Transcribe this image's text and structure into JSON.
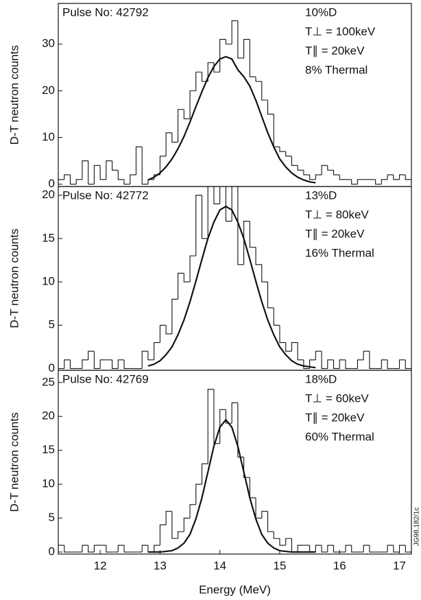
{
  "chart_data": [
    {
      "type": "histogram",
      "title": "Pulse No: 42792",
      "annotations": [
        "10%D",
        "T⊥ = 100keV",
        "T∥ = 20keV",
        "8% Thermal"
      ],
      "ylabel": "D-T neutron counts",
      "bins": [
        11.3,
        11.4,
        11.5,
        11.6,
        11.7,
        11.8,
        11.9,
        12.0,
        12.1,
        12.2,
        12.3,
        12.4,
        12.5,
        12.6,
        12.7,
        12.8,
        12.9,
        13.0,
        13.1,
        13.2,
        13.3,
        13.4,
        13.5,
        13.6,
        13.7,
        13.8,
        13.9,
        14.0,
        14.1,
        14.2,
        14.3,
        14.4,
        14.5,
        14.6,
        14.7,
        14.8,
        14.9,
        15.0,
        15.1,
        15.2,
        15.3,
        15.4,
        15.5,
        15.6,
        15.7,
        15.8,
        15.9,
        16.0,
        16.1,
        16.2,
        16.3,
        16.4,
        16.5,
        16.6,
        16.7,
        16.8,
        16.9,
        17.0,
        17.1,
        17.2
      ],
      "counts": [
        1,
        2,
        0,
        1,
        5,
        0,
        4,
        1,
        5,
        3,
        1,
        0,
        2,
        8,
        0,
        1,
        2,
        6,
        11,
        9,
        16,
        14,
        20,
        24,
        22,
        26,
        24,
        31,
        30,
        35,
        27,
        31,
        23,
        22,
        18,
        15,
        8,
        7,
        6,
        4,
        3,
        2,
        1,
        2,
        4,
        3,
        2,
        1,
        1,
        0,
        1,
        1,
        1,
        0,
        1,
        2,
        1,
        2,
        1
      ],
      "fit": {
        "x": [
          12.8,
          12.9,
          13.0,
          13.1,
          13.2,
          13.3,
          13.4,
          13.5,
          13.6,
          13.7,
          13.8,
          13.9,
          14.0,
          14.1,
          14.2,
          14.3,
          14.4,
          14.5,
          14.6,
          14.7,
          14.8,
          14.9,
          15.0,
          15.1,
          15.2,
          15.3,
          15.4,
          15.5,
          15.6
        ],
        "values": [
          0.9,
          1.5,
          2.4,
          3.7,
          5.4,
          7.6,
          10.2,
          13.3,
          16.6,
          19.8,
          22.8,
          25.2,
          26.8,
          27.3,
          26.8,
          24.5,
          23,
          21,
          18,
          14.5,
          11,
          8,
          5.4,
          3.7,
          2.4,
          1.5,
          0.9,
          0.5,
          0.3
        ]
      },
      "xlim": [
        11.3,
        17.2
      ],
      "ylim": [
        -0.5,
        38.7
      ],
      "yticks": [
        0,
        10,
        20,
        30
      ]
    },
    {
      "type": "histogram",
      "title": "Pulse No: 42772",
      "annotations": [
        "13%D",
        "T⊥ = 80keV",
        "T∥ = 20keV",
        "16% Thermal"
      ],
      "ylabel": "D-T neutron counts",
      "bins": [
        11.3,
        11.4,
        11.5,
        11.6,
        11.7,
        11.8,
        11.9,
        12.0,
        12.1,
        12.2,
        12.3,
        12.4,
        12.5,
        12.6,
        12.7,
        12.8,
        12.9,
        13.0,
        13.1,
        13.2,
        13.3,
        13.4,
        13.5,
        13.6,
        13.7,
        13.8,
        13.9,
        14.0,
        14.1,
        14.2,
        14.3,
        14.4,
        14.5,
        14.6,
        14.7,
        14.8,
        14.9,
        15.0,
        15.1,
        15.2,
        15.3,
        15.4,
        15.5,
        15.6,
        15.7,
        15.8,
        15.9,
        16.0,
        16.1,
        16.2,
        16.3,
        16.4,
        16.5,
        16.6,
        16.7,
        16.8,
        16.9,
        17.0,
        17.1,
        17.2
      ],
      "counts": [
        0,
        1,
        0,
        0,
        1,
        2,
        0,
        1,
        1,
        0,
        1,
        0,
        0,
        0,
        2,
        1,
        3,
        5,
        4,
        8,
        11,
        10,
        13,
        20,
        15,
        21,
        19,
        22,
        17,
        22,
        12,
        17,
        14,
        12,
        10,
        7,
        5,
        3,
        2,
        3,
        1,
        0,
        1,
        2,
        0,
        1,
        0,
        1,
        0,
        0,
        1,
        2,
        0,
        0,
        1,
        0,
        0,
        1,
        0
      ],
      "fit": {
        "x": [
          12.8,
          12.9,
          13.0,
          13.1,
          13.2,
          13.3,
          13.4,
          13.5,
          13.6,
          13.7,
          13.8,
          13.9,
          14.0,
          14.1,
          14.2,
          14.3,
          14.4,
          14.5,
          14.6,
          14.7,
          14.8,
          14.9,
          15.0,
          15.1,
          15.2,
          15.3,
          15.4,
          15.5,
          15.6
        ],
        "values": [
          0.3,
          0.5,
          0.9,
          1.6,
          2.5,
          3.9,
          5.6,
          7.7,
          10.1,
          12.6,
          15.0,
          16.9,
          18.3,
          18.7,
          18.3,
          16.9,
          15.0,
          12.6,
          10.1,
          7.7,
          5.6,
          3.9,
          2.5,
          1.6,
          0.9,
          0.5,
          0.3,
          0.2,
          0.1
        ]
      },
      "xlim": [
        11.3,
        17.2
      ],
      "ylim": [
        -0.2,
        21
      ],
      "yticks": [
        0,
        5,
        10,
        15,
        20
      ]
    },
    {
      "type": "histogram",
      "title": "Pulse No: 42769",
      "annotations": [
        "18%D",
        "T⊥ = 60keV",
        "T∥ = 20keV",
        "60% Thermal"
      ],
      "ylabel": "D-T neutron counts",
      "xlabel": "Energy (MeV)",
      "credit": "JG98.182/1c",
      "bins": [
        11.3,
        11.4,
        11.5,
        11.6,
        11.7,
        11.8,
        11.9,
        12.0,
        12.1,
        12.2,
        12.3,
        12.4,
        12.5,
        12.6,
        12.7,
        12.8,
        12.9,
        13.0,
        13.1,
        13.2,
        13.3,
        13.4,
        13.5,
        13.6,
        13.7,
        13.8,
        13.9,
        14.0,
        14.1,
        14.2,
        14.3,
        14.4,
        14.5,
        14.6,
        14.7,
        14.8,
        14.9,
        15.0,
        15.1,
        15.2,
        15.3,
        15.4,
        15.5,
        15.6,
        15.7,
        15.8,
        15.9,
        16.0,
        16.1,
        16.2,
        16.3,
        16.4,
        16.5,
        16.6,
        16.7,
        16.8,
        16.9,
        17.0,
        17.1,
        17.2
      ],
      "counts": [
        1,
        0,
        0,
        0,
        1,
        0,
        1,
        1,
        0,
        0,
        1,
        0,
        0,
        0,
        1,
        0,
        1,
        4,
        6,
        2,
        3,
        5,
        7,
        10,
        13,
        24,
        16,
        21,
        19,
        22,
        14,
        11,
        8,
        5,
        6,
        3,
        2,
        1,
        2,
        0,
        1,
        1,
        0,
        1,
        0,
        1,
        0,
        0,
        1,
        0,
        0,
        1,
        0,
        0,
        0,
        1,
        0,
        1,
        0
      ],
      "fit": {
        "x": [
          12.8,
          12.9,
          13.0,
          13.1,
          13.2,
          13.3,
          13.4,
          13.5,
          13.6,
          13.7,
          13.8,
          13.9,
          14.0,
          14.1,
          14.2,
          14.3,
          14.4,
          14.5,
          14.6,
          14.7,
          14.8,
          14.9,
          15.0,
          15.1,
          15.2,
          15.3,
          15.4,
          15.5,
          15.6
        ],
        "values": [
          0,
          0,
          0,
          0.1,
          0.2,
          0.6,
          1.3,
          2.6,
          4.9,
          8.0,
          11.8,
          15.6,
          18.4,
          19.5,
          18.4,
          15.6,
          11.8,
          8.0,
          4.9,
          2.6,
          1.3,
          0.6,
          0.2,
          0.1,
          0,
          0,
          0,
          0,
          0
        ]
      },
      "xlim": [
        11.3,
        17.2
      ],
      "ylim": [
        -0.3,
        26.8
      ],
      "yticks": [
        0,
        5,
        10,
        15,
        20,
        25
      ],
      "xticks": [
        12,
        13,
        14,
        15,
        16,
        17
      ]
    }
  ]
}
